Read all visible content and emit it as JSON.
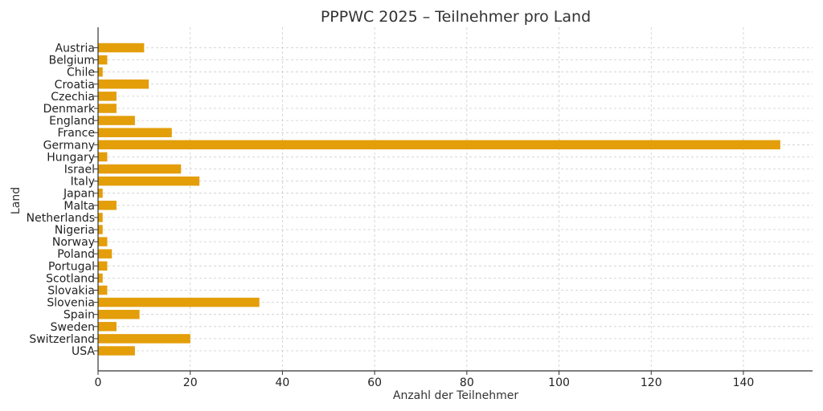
{
  "chart_data": {
    "type": "bar",
    "orientation": "horizontal",
    "title": "PPPWC 2025 – Teilnehmer pro Land",
    "xlabel": "Anzahl der Teilnehmer",
    "ylabel": "Land",
    "xlim": [
      0,
      155
    ],
    "xticks": [
      0,
      20,
      40,
      60,
      80,
      100,
      120,
      140
    ],
    "grid": true,
    "bar_color": "#E39E0A",
    "categories": [
      "Austria",
      "Belgium",
      "Chile",
      "Croatia",
      "Czechia",
      "Denmark",
      "England",
      "France",
      "Germany",
      "Hungary",
      "Israel",
      "Italy",
      "Japan",
      "Malta",
      "Netherlands",
      "Nigeria",
      "Norway",
      "Poland",
      "Portugal",
      "Scotland",
      "Slovakia",
      "Slovenia",
      "Spain",
      "Sweden",
      "Switzerland",
      "USA"
    ],
    "values": [
      10,
      2,
      1,
      11,
      4,
      4,
      8,
      16,
      148,
      2,
      18,
      22,
      1,
      4,
      1,
      1,
      2,
      3,
      2,
      1,
      2,
      35,
      9,
      4,
      20,
      8
    ]
  }
}
